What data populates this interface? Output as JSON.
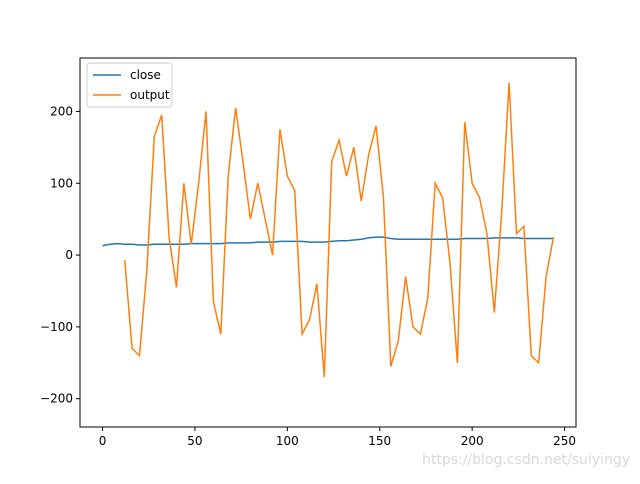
{
  "chart_data": {
    "type": "line",
    "x": [
      0,
      4,
      8,
      12,
      16,
      20,
      24,
      28,
      32,
      36,
      40,
      44,
      48,
      52,
      56,
      60,
      64,
      68,
      72,
      76,
      80,
      84,
      88,
      92,
      96,
      100,
      104,
      108,
      112,
      116,
      120,
      124,
      128,
      132,
      136,
      140,
      144,
      148,
      152,
      156,
      160,
      164,
      168,
      172,
      176,
      180,
      184,
      188,
      192,
      196,
      200,
      204,
      208,
      212,
      216,
      220,
      224,
      228,
      232,
      236,
      240,
      244
    ],
    "series": [
      {
        "name": "close",
        "color": "#1f77b4",
        "values": [
          13,
          15,
          16,
          15,
          15,
          14,
          14,
          15,
          15,
          15,
          15,
          15,
          16,
          16,
          16,
          16,
          16,
          17,
          17,
          17,
          17,
          18,
          18,
          18,
          19,
          19,
          19,
          19,
          18,
          18,
          18,
          19,
          20,
          20,
          21,
          22,
          24,
          25,
          25,
          23,
          22,
          22,
          22,
          22,
          22,
          22,
          22,
          22,
          22,
          23,
          23,
          23,
          23,
          24,
          24,
          24,
          24,
          23,
          23,
          23,
          23,
          23
        ]
      },
      {
        "name": "output",
        "color": "#ff7f0e",
        "values": [
          null,
          null,
          null,
          -7,
          -130,
          -140,
          -20,
          165,
          195,
          25,
          -45,
          100,
          15,
          100,
          200,
          -65,
          -110,
          110,
          205,
          130,
          50,
          100,
          50,
          0,
          175,
          110,
          90,
          -110,
          -90,
          -40,
          -170,
          130,
          160,
          110,
          150,
          75,
          140,
          180,
          80,
          -155,
          -120,
          -30,
          -100,
          -110,
          -60,
          100,
          80,
          -10,
          -150,
          185,
          100,
          80,
          30,
          -80,
          60,
          240,
          30,
          40,
          -140,
          -150,
          -30,
          25
        ]
      }
    ],
    "xlim": [
      -12.2,
      256.2
    ],
    "ylim": [
      -239.4,
      274.4
    ],
    "xticks": [
      0,
      50,
      100,
      150,
      200,
      250
    ],
    "yticks": [
      {
        "value": -200,
        "label": "−200"
      },
      {
        "value": -100,
        "label": "−100"
      },
      0,
      100,
      200
    ],
    "legend": "upper left",
    "watermark": "https://blog.csdn.net/suiyingy"
  }
}
